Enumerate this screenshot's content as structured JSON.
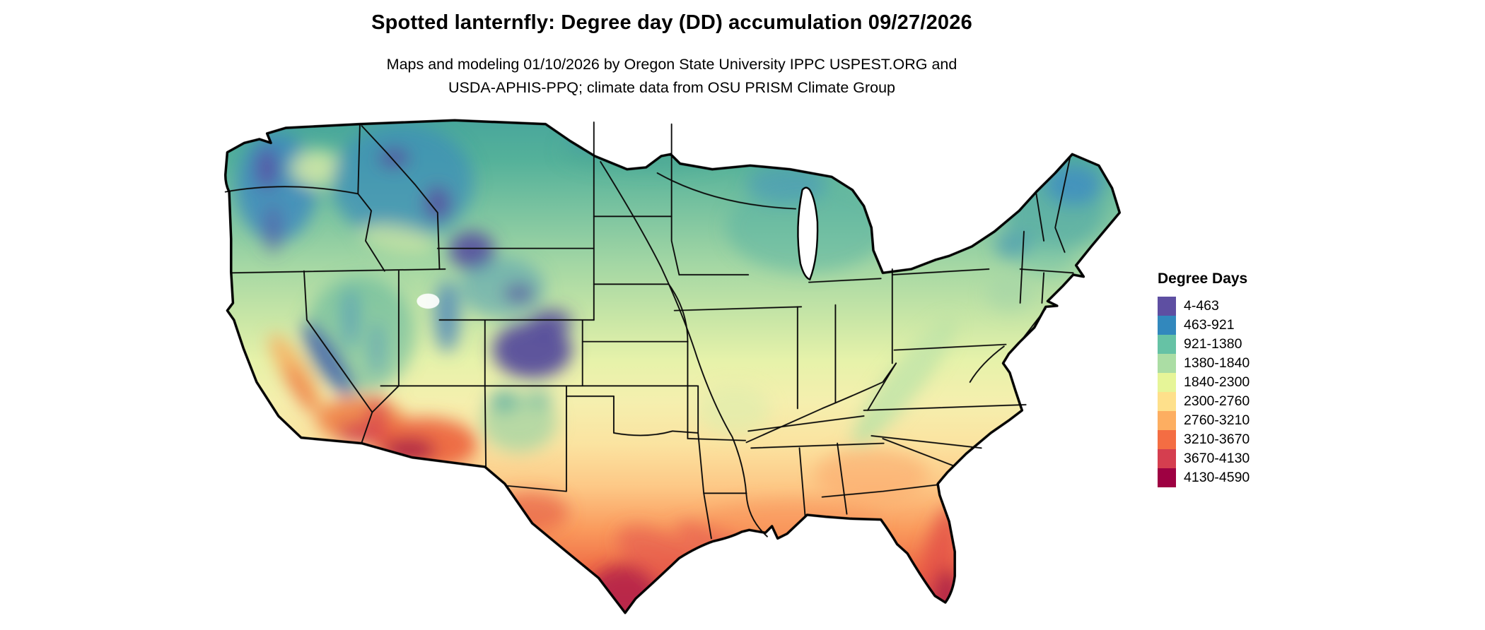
{
  "header": {
    "title": "Spotted lanternfly: Degree day (DD) accumulation 09/27/2026",
    "subtitle_line1": "Maps and modeling 01/10/2026 by Oregon State University IPPC USPEST.ORG and",
    "subtitle_line2": "USDA-APHIS-PPQ; climate data from OSU PRISM Climate Group"
  },
  "legend": {
    "title": "Degree Days",
    "entries": [
      {
        "range": "4-463",
        "color": "#5e4fa2"
      },
      {
        "range": "463-921",
        "color": "#3288bd"
      },
      {
        "range": "921-1380",
        "color": "#66c2a5"
      },
      {
        "range": "1380-1840",
        "color": "#abdda4"
      },
      {
        "range": "1840-2300",
        "color": "#e6f598"
      },
      {
        "range": "2300-2760",
        "color": "#fee08b"
      },
      {
        "range": "2760-3210",
        "color": "#fdae61"
      },
      {
        "range": "3210-3670",
        "color": "#f46d43"
      },
      {
        "range": "3670-4130",
        "color": "#d53e4f"
      },
      {
        "range": "4130-4590",
        "color": "#9e0142"
      }
    ]
  }
}
